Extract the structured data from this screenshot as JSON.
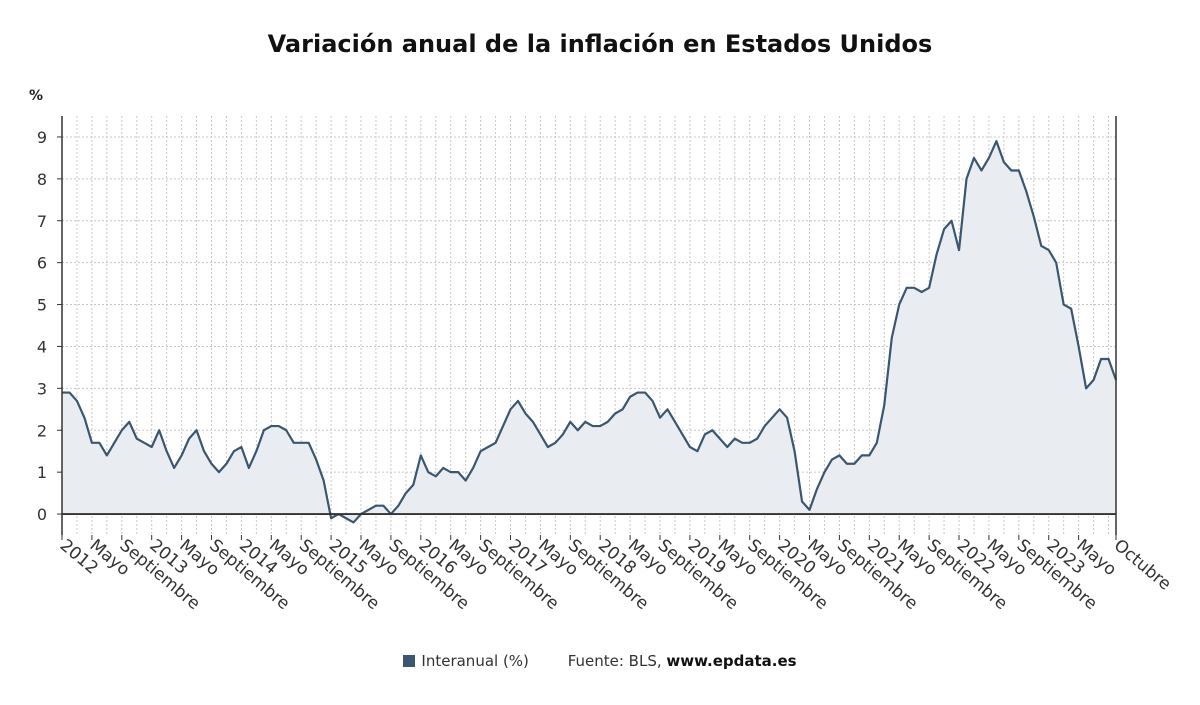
{
  "chart_data": {
    "type": "area",
    "title": "Variación anual de la inflación en Estados Unidos",
    "y_unit_label": "%",
    "ylim": [
      -0.5,
      9.5
    ],
    "y_ticks": [
      0,
      1,
      2,
      3,
      4,
      5,
      6,
      7,
      8,
      9
    ],
    "grid": true,
    "legend_position": "bottom",
    "line_color": "#3a5670",
    "fill_color": "#e9edf2",
    "x_tick_labels": [
      "2012",
      "Mayo",
      "Septiembre",
      "2013",
      "Mayo",
      "Septiembre",
      "2014",
      "Mayo",
      "Septiembre",
      "2015",
      "Mayo",
      "Septiembre",
      "2016",
      "Mayo",
      "Septiembre",
      "2017",
      "Mayo",
      "Septiembre",
      "2018",
      "Mayo",
      "Septiembre",
      "2019",
      "Mayo",
      "Septiembre",
      "2020",
      "Mayo",
      "Septiembre",
      "2021",
      "Mayo",
      "Septiembre",
      "2022",
      "Mayo",
      "Septiembre",
      "2023",
      "Mayo",
      "Octubre"
    ],
    "x_tick_dates": [
      "2012-01",
      "2012-05",
      "2012-09",
      "2013-01",
      "2013-05",
      "2013-09",
      "2014-01",
      "2014-05",
      "2014-09",
      "2015-01",
      "2015-05",
      "2015-09",
      "2016-01",
      "2016-05",
      "2016-09",
      "2017-01",
      "2017-05",
      "2017-09",
      "2018-01",
      "2018-05",
      "2018-09",
      "2019-01",
      "2019-05",
      "2019-09",
      "2020-01",
      "2020-05",
      "2020-09",
      "2021-01",
      "2021-05",
      "2021-09",
      "2022-01",
      "2022-05",
      "2022-09",
      "2023-01",
      "2023-05",
      "2023-10"
    ],
    "x_start": "2012-01",
    "x_end": "2023-10",
    "series": [
      {
        "name": "Interanual (%)",
        "values": [
          2.9,
          2.9,
          2.7,
          2.3,
          1.7,
          1.7,
          1.4,
          1.7,
          2.0,
          2.2,
          1.8,
          1.7,
          1.6,
          2.0,
          1.5,
          1.1,
          1.4,
          1.8,
          2.0,
          1.5,
          1.2,
          1.0,
          1.2,
          1.5,
          1.6,
          1.1,
          1.5,
          2.0,
          2.1,
          2.1,
          2.0,
          1.7,
          1.7,
          1.7,
          1.3,
          0.8,
          -0.1,
          0.0,
          -0.1,
          -0.2,
          0.0,
          0.1,
          0.2,
          0.2,
          0.0,
          0.2,
          0.5,
          0.7,
          1.4,
          1.0,
          0.9,
          1.1,
          1.0,
          1.0,
          0.8,
          1.1,
          1.5,
          1.6,
          1.7,
          2.1,
          2.5,
          2.7,
          2.4,
          2.2,
          1.9,
          1.6,
          1.7,
          1.9,
          2.2,
          2.0,
          2.2,
          2.1,
          2.1,
          2.2,
          2.4,
          2.5,
          2.8,
          2.9,
          2.9,
          2.7,
          2.3,
          2.5,
          2.2,
          1.9,
          1.6,
          1.5,
          1.9,
          2.0,
          1.8,
          1.6,
          1.8,
          1.7,
          1.7,
          1.8,
          2.1,
          2.3,
          2.5,
          2.3,
          1.5,
          0.3,
          0.1,
          0.6,
          1.0,
          1.3,
          1.4,
          1.2,
          1.2,
          1.4,
          1.4,
          1.7,
          2.6,
          4.2,
          5.0,
          5.4,
          5.4,
          5.3,
          5.4,
          6.2,
          6.8,
          7.0,
          6.3,
          8.0,
          8.5,
          8.2,
          8.5,
          8.9,
          8.4,
          8.2,
          8.2,
          7.7,
          7.1,
          6.4,
          6.3,
          6.0,
          5.0,
          4.9,
          4.0,
          3.0,
          3.2,
          3.7,
          3.7,
          3.2
        ]
      }
    ]
  },
  "legend": {
    "series_label": "Interanual (%)",
    "source_label": "Fuente: BLS,",
    "source_site": "www.epdata.es"
  }
}
